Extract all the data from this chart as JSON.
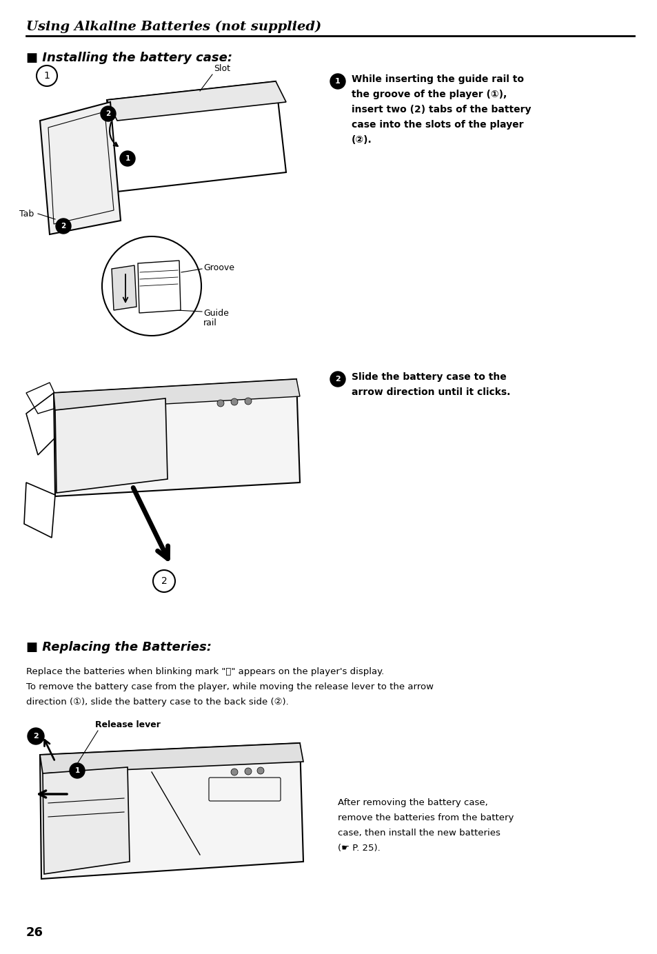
{
  "page_width": 9.54,
  "page_height": 13.84,
  "dpi": 100,
  "bg_color": "#ffffff",
  "header_title": "Using Alkaline Batteries (not supplied)",
  "section1_title": "■ Installing the battery case:",
  "step1_lines": [
    "While inserting the guide rail to",
    "the groove of the player (①),",
    "insert two (2) tabs of the battery",
    "case into the slots of the player",
    "(②)."
  ],
  "step2_lines": [
    "Slide the battery case to the",
    "arrow direction until it clicks."
  ],
  "section2_title": "■ Replacing the Batteries:",
  "replace_lines": [
    "Replace the batteries when blinking mark \"⌛\" appears on the player's display.",
    "To remove the battery case from the player, while moving the release lever to the arrow",
    "direction (①), slide the battery case to the back side (②)."
  ],
  "after_lines": [
    "After removing the battery case,",
    "remove the batteries from the battery",
    "case, then install the new batteries",
    "(☛ P. 25)."
  ],
  "page_number": "26",
  "slot_label": "Slot",
  "tab_label": "Tab",
  "groove_label": "Groove",
  "guide_rail_label1": "Guide",
  "guide_rail_label2": "rail",
  "release_lever_label": "Release lever"
}
